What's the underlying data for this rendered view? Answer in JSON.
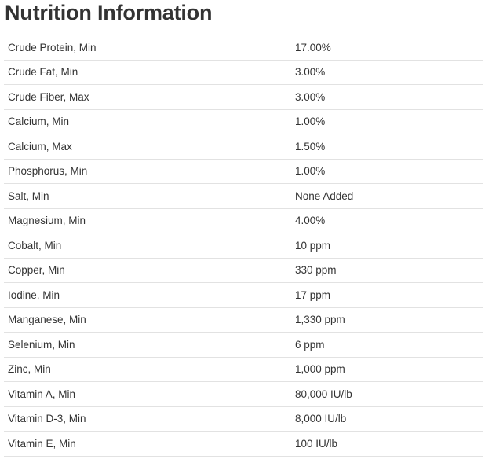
{
  "title": "Nutrition Information",
  "rows": [
    {
      "name": "Crude Protein, Min",
      "value": "17.00%"
    },
    {
      "name": "Crude Fat, Min",
      "value": "3.00%"
    },
    {
      "name": "Crude Fiber, Max",
      "value": "3.00%"
    },
    {
      "name": "Calcium, Min",
      "value": "1.00%"
    },
    {
      "name": "Calcium, Max",
      "value": "1.50%"
    },
    {
      "name": "Phosphorus, Min",
      "value": "1.00%"
    },
    {
      "name": "Salt, Min",
      "value": "None Added"
    },
    {
      "name": "Magnesium, Min",
      "value": "4.00%"
    },
    {
      "name": "Cobalt, Min",
      "value": "10 ppm"
    },
    {
      "name": "Copper, Min",
      "value": "330 ppm"
    },
    {
      "name": "Iodine, Min",
      "value": "17 ppm"
    },
    {
      "name": "Manganese, Min",
      "value": "1,330 ppm"
    },
    {
      "name": "Selenium, Min",
      "value": "6 ppm"
    },
    {
      "name": "Zinc, Min",
      "value": "1,000 ppm"
    },
    {
      "name": "Vitamin A, Min",
      "value": "80,000 IU/lb"
    },
    {
      "name": "Vitamin D-3, Min",
      "value": "8,000 IU/lb"
    },
    {
      "name": "Vitamin E, Min",
      "value": "100 IU/lb"
    }
  ]
}
